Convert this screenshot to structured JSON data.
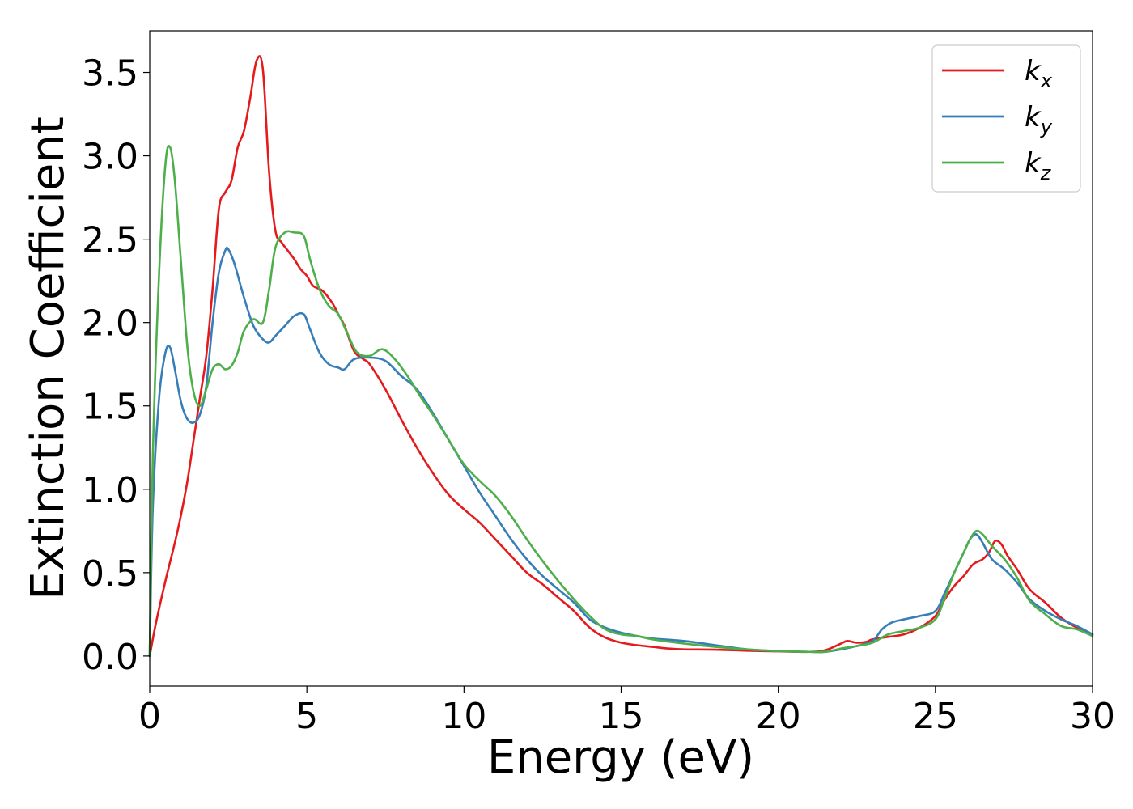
{
  "chart_data": {
    "type": "line",
    "title": "",
    "xlabel": "Energy (eV)",
    "ylabel": "Extinction Coefficient",
    "xlim": [
      0,
      30
    ],
    "ylim": [
      -0.18,
      3.75
    ],
    "xticks": [
      0,
      5,
      10,
      15,
      20,
      25,
      30
    ],
    "xtick_labels": [
      "0",
      "5",
      "10",
      "15",
      "20",
      "25",
      "30"
    ],
    "yticks": [
      0.0,
      0.5,
      1.0,
      1.5,
      2.0,
      2.5,
      3.0,
      3.5
    ],
    "ytick_labels": [
      "0.0",
      "0.5",
      "1.0",
      "1.5",
      "2.0",
      "2.5",
      "3.0",
      "3.5"
    ],
    "grid": false,
    "legend_position": "top-right",
    "series": [
      {
        "name": "k_x",
        "legend_base": "k",
        "legend_sub": "x",
        "color": "#e41a1c",
        "x": [
          0,
          0.2,
          0.5,
          0.8,
          1.0,
          1.2,
          1.4,
          1.6,
          1.8,
          2.0,
          2.2,
          2.4,
          2.6,
          2.8,
          3.0,
          3.2,
          3.4,
          3.6,
          3.8,
          4.0,
          4.2,
          4.4,
          4.6,
          4.8,
          5.0,
          5.2,
          5.5,
          5.8,
          6.0,
          6.2,
          6.5,
          6.8,
          7.0,
          7.5,
          8.0,
          8.5,
          9.0,
          9.5,
          10.0,
          10.5,
          11.0,
          11.5,
          12.0,
          12.5,
          13.0,
          13.5,
          14.0,
          14.5,
          15.0,
          15.5,
          16.0,
          16.5,
          17.0,
          18.0,
          19.0,
          20.0,
          21.0,
          21.5,
          22.0,
          22.2,
          22.5,
          22.8,
          23.0,
          23.5,
          24.0,
          24.5,
          25.0,
          25.3,
          25.6,
          25.9,
          26.2,
          26.5,
          26.7,
          26.9,
          27.1,
          27.3,
          27.6,
          28.0,
          28.5,
          29.0,
          29.5,
          30.0
        ],
        "y": [
          0.0,
          0.2,
          0.45,
          0.68,
          0.85,
          1.05,
          1.3,
          1.55,
          1.8,
          2.2,
          2.68,
          2.78,
          2.85,
          3.05,
          3.15,
          3.35,
          3.57,
          3.52,
          2.9,
          2.55,
          2.48,
          2.43,
          2.38,
          2.32,
          2.28,
          2.22,
          2.19,
          2.12,
          2.05,
          1.98,
          1.83,
          1.78,
          1.75,
          1.6,
          1.42,
          1.25,
          1.1,
          0.97,
          0.88,
          0.8,
          0.7,
          0.6,
          0.5,
          0.43,
          0.35,
          0.27,
          0.17,
          0.11,
          0.08,
          0.065,
          0.055,
          0.045,
          0.04,
          0.038,
          0.032,
          0.028,
          0.025,
          0.035,
          0.075,
          0.09,
          0.08,
          0.085,
          0.1,
          0.115,
          0.13,
          0.17,
          0.24,
          0.34,
          0.42,
          0.48,
          0.55,
          0.58,
          0.62,
          0.69,
          0.67,
          0.6,
          0.52,
          0.4,
          0.32,
          0.23,
          0.17,
          0.13
        ]
      },
      {
        "name": "k_y",
        "legend_base": "k",
        "legend_sub": "y",
        "color": "#377eb8",
        "x": [
          0,
          0.1,
          0.3,
          0.5,
          0.65,
          0.8,
          1.0,
          1.2,
          1.4,
          1.6,
          1.8,
          2.0,
          2.2,
          2.4,
          2.5,
          2.7,
          3.0,
          3.3,
          3.6,
          3.8,
          4.0,
          4.3,
          4.6,
          4.9,
          5.1,
          5.4,
          5.7,
          6.0,
          6.2,
          6.5,
          7.0,
          7.5,
          8.0,
          8.5,
          9.0,
          9.5,
          10.0,
          10.5,
          11.0,
          11.5,
          12.0,
          12.5,
          13.0,
          13.5,
          14.0,
          14.5,
          15.0,
          15.5,
          16.0,
          17.0,
          18.0,
          19.0,
          20.0,
          21.0,
          21.5,
          22.0,
          22.5,
          23.0,
          23.3,
          23.6,
          24.0,
          24.5,
          25.0,
          25.3,
          25.6,
          25.9,
          26.1,
          26.3,
          26.5,
          26.8,
          27.2,
          27.6,
          28.0,
          28.5,
          29.0,
          29.5,
          30.0
        ],
        "y": [
          0.0,
          0.9,
          1.55,
          1.82,
          1.85,
          1.72,
          1.52,
          1.42,
          1.4,
          1.45,
          1.62,
          2.0,
          2.3,
          2.43,
          2.44,
          2.35,
          2.15,
          1.98,
          1.9,
          1.88,
          1.92,
          1.98,
          2.04,
          2.05,
          1.96,
          1.82,
          1.75,
          1.73,
          1.72,
          1.78,
          1.79,
          1.77,
          1.68,
          1.6,
          1.46,
          1.3,
          1.14,
          0.98,
          0.84,
          0.7,
          0.58,
          0.48,
          0.4,
          0.32,
          0.22,
          0.17,
          0.14,
          0.12,
          0.105,
          0.09,
          0.065,
          0.04,
          0.03,
          0.025,
          0.025,
          0.04,
          0.06,
          0.09,
          0.16,
          0.2,
          0.22,
          0.24,
          0.27,
          0.38,
          0.5,
          0.62,
          0.7,
          0.73,
          0.68,
          0.58,
          0.52,
          0.44,
          0.34,
          0.27,
          0.22,
          0.18,
          0.13
        ]
      },
      {
        "name": "k_z",
        "legend_base": "k",
        "legend_sub": "z",
        "color": "#4daf4a",
        "x": [
          0,
          0.1,
          0.3,
          0.5,
          0.65,
          0.8,
          1.0,
          1.2,
          1.4,
          1.6,
          1.8,
          2.0,
          2.2,
          2.4,
          2.6,
          2.8,
          3.0,
          3.3,
          3.6,
          3.8,
          4.0,
          4.3,
          4.6,
          4.9,
          5.1,
          5.4,
          5.7,
          6.0,
          6.3,
          6.6,
          7.0,
          7.4,
          7.8,
          8.2,
          8.6,
          9.0,
          9.5,
          10.0,
          10.5,
          11.0,
          11.5,
          12.0,
          12.5,
          13.0,
          13.5,
          14.0,
          14.5,
          15.0,
          15.5,
          16.0,
          17.0,
          18.0,
          19.0,
          20.0,
          21.0,
          21.5,
          22.0,
          22.5,
          23.0,
          23.5,
          24.0,
          24.5,
          25.0,
          25.3,
          25.6,
          25.9,
          26.1,
          26.3,
          26.5,
          26.8,
          27.2,
          27.6,
          28.0,
          28.5,
          29.0,
          29.5,
          30.0
        ],
        "y": [
          0.0,
          1.2,
          2.3,
          2.95,
          3.05,
          2.85,
          2.35,
          1.85,
          1.58,
          1.5,
          1.6,
          1.72,
          1.75,
          1.72,
          1.74,
          1.82,
          1.95,
          2.02,
          2.0,
          2.2,
          2.45,
          2.54,
          2.54,
          2.52,
          2.38,
          2.2,
          2.1,
          2.05,
          1.93,
          1.82,
          1.8,
          1.84,
          1.78,
          1.68,
          1.56,
          1.45,
          1.3,
          1.15,
          1.05,
          0.96,
          0.84,
          0.7,
          0.57,
          0.45,
          0.34,
          0.24,
          0.16,
          0.13,
          0.12,
          0.1,
          0.075,
          0.055,
          0.04,
          0.03,
          0.025,
          0.025,
          0.045,
          0.06,
          0.08,
          0.13,
          0.15,
          0.17,
          0.22,
          0.35,
          0.5,
          0.62,
          0.7,
          0.75,
          0.73,
          0.66,
          0.58,
          0.47,
          0.33,
          0.25,
          0.18,
          0.16,
          0.12
        ]
      }
    ]
  }
}
